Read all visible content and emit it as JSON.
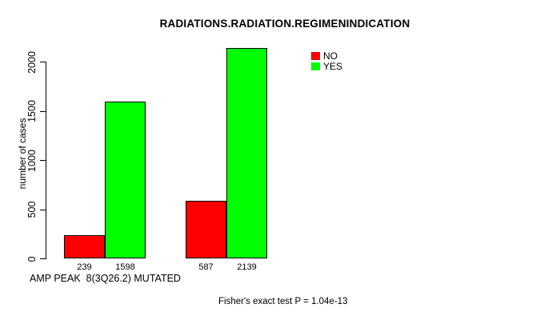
{
  "chart_data": {
    "type": "bar",
    "title": "RADIATIONS.RADIATION.REGIMENINDICATION",
    "xlabel": "AMP PEAK  8(3Q26.2) MUTATED",
    "ylabel": "number of cases",
    "ylim": [
      0,
      2000
    ],
    "yticks": [
      0,
      500,
      1000,
      1500,
      2000
    ],
    "grid": false,
    "legend_position": "top-right",
    "groups": 2,
    "series": [
      {
        "name": "NO",
        "color": "#FF0000",
        "values": [
          239,
          587
        ]
      },
      {
        "name": "YES",
        "color": "#00FF00",
        "values": [
          1598,
          2139
        ]
      }
    ],
    "bar_value_labels": [
      "239",
      "1598",
      "587",
      "2139"
    ],
    "annotation": "Fisher's exact test P = 1.04e-13"
  },
  "colors": {
    "no": "#FF0000",
    "yes": "#00FF00",
    "axis": "#000000",
    "background": "#FFFFFF"
  }
}
